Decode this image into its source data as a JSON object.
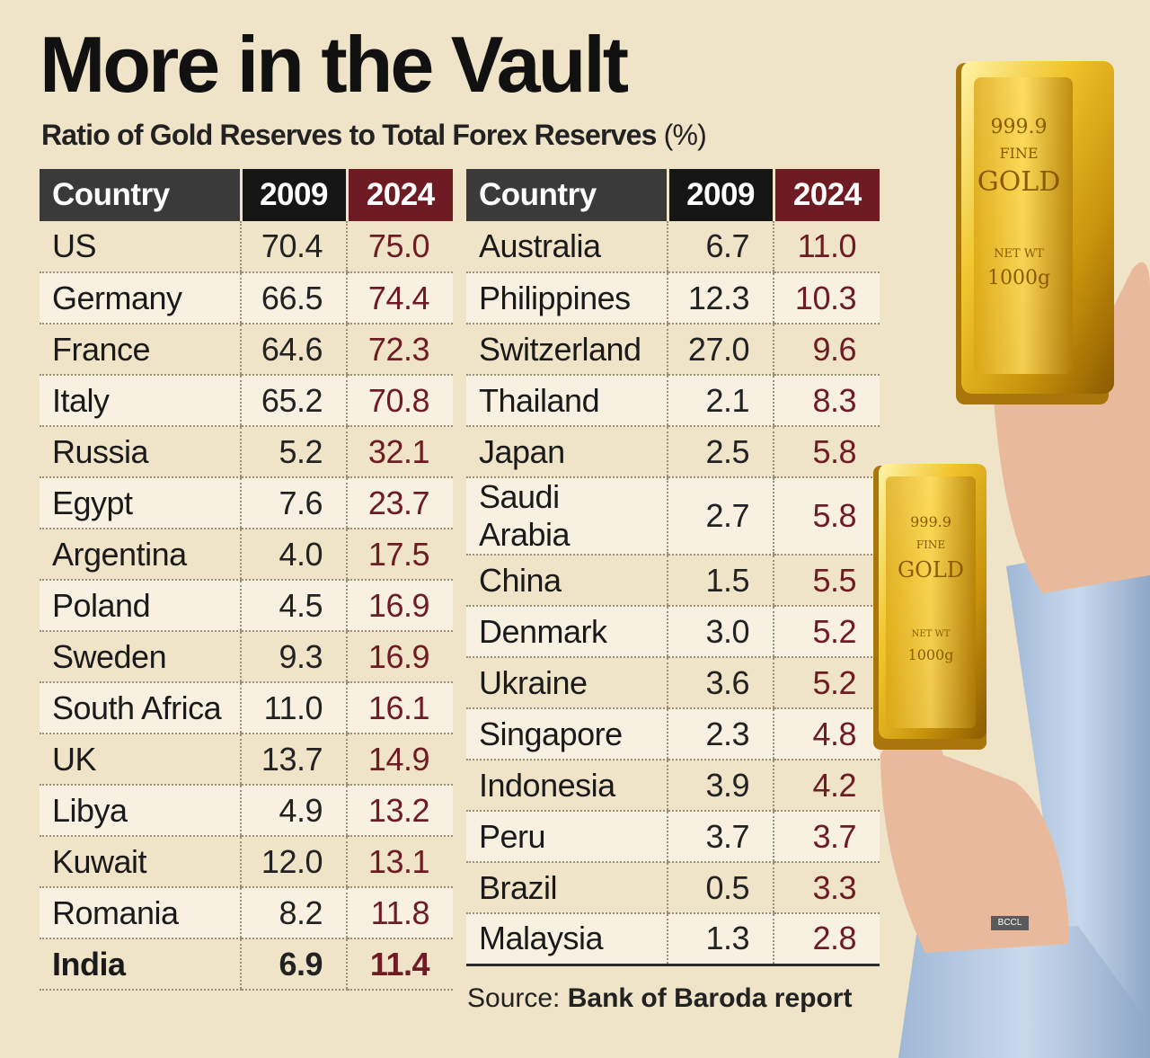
{
  "header": {
    "title": "More in the Vault",
    "subtitle": "Ratio of Gold Reserves to Total Forex Reserves",
    "unit": "(%)"
  },
  "colors": {
    "background": "#efe3c8",
    "accent": "#6e1b24",
    "header_dark": "#161616",
    "header_grey": "#3a3a3a"
  },
  "chart_data": {
    "type": "table",
    "title": "More in the Vault",
    "subtitle": "Ratio of Gold Reserves to Total Forex Reserves (%)",
    "columns": [
      "Country",
      "2009",
      "2024"
    ],
    "left_rows": [
      [
        "US",
        "70.4",
        "75.0"
      ],
      [
        "Germany",
        "66.5",
        "74.4"
      ],
      [
        "France",
        "64.6",
        "72.3"
      ],
      [
        "Italy",
        "65.2",
        "70.8"
      ],
      [
        "Russia",
        "5.2",
        "32.1"
      ],
      [
        "Egypt",
        "7.6",
        "23.7"
      ],
      [
        "Argentina",
        "4.0",
        "17.5"
      ],
      [
        "Poland",
        "4.5",
        "16.9"
      ],
      [
        "Sweden",
        "9.3",
        "16.9"
      ],
      [
        "South Africa",
        "11.0",
        "16.1"
      ],
      [
        "UK",
        "13.7",
        "14.9"
      ],
      [
        "Libya",
        "4.9",
        "13.2"
      ],
      [
        "Kuwait",
        "12.0",
        "13.1"
      ],
      [
        "Romania",
        "8.2",
        "11.8"
      ],
      [
        "India",
        "6.9",
        "11.4"
      ]
    ],
    "right_rows": [
      [
        "Australia",
        "6.7",
        "11.0"
      ],
      [
        "Philippines",
        "12.3",
        "10.3"
      ],
      [
        "Switzerland",
        "27.0",
        "9.6"
      ],
      [
        "Thailand",
        "2.1",
        "8.3"
      ],
      [
        "Japan",
        "2.5",
        "5.8"
      ],
      [
        "Saudi Arabia",
        "2.7",
        "5.8"
      ],
      [
        "China",
        "1.5",
        "5.5"
      ],
      [
        "Denmark",
        "3.0",
        "5.2"
      ],
      [
        "Ukraine",
        "3.6",
        "5.2"
      ],
      [
        "Singapore",
        "2.3",
        "4.8"
      ],
      [
        "Indonesia",
        "3.9",
        "4.2"
      ],
      [
        "Peru",
        "3.7",
        "3.7"
      ],
      [
        "Brazil",
        "0.5",
        "3.3"
      ],
      [
        "Malaysia",
        "1.3",
        "2.8"
      ]
    ],
    "highlight_country": "India"
  },
  "source": {
    "label": "Source:",
    "text": "Bank of Baroda report"
  },
  "image": {
    "bar_large": {
      "purity": "999.9",
      "fine": "FINE",
      "metal": "GOLD",
      "weight_label": "NET WT",
      "weight": "1000g"
    },
    "bar_small": {
      "purity": "999.9",
      "fine": "FINE",
      "metal": "GOLD",
      "weight_label": "NET WT",
      "weight": "1000g"
    },
    "credit": "BCCL"
  }
}
